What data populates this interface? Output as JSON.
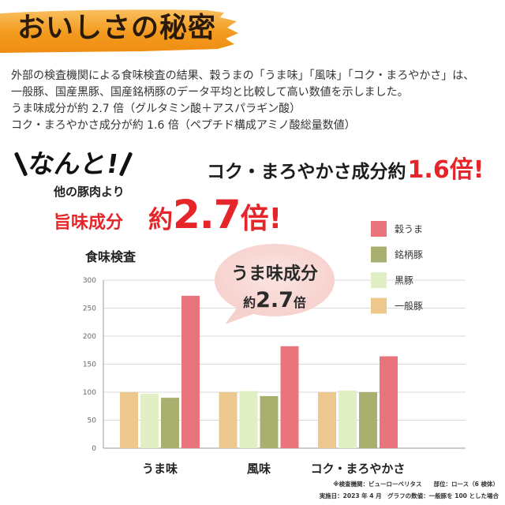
{
  "header": {
    "title": "おいしさの秘密"
  },
  "intro": {
    "lines": [
      "外部の検査機関による食味検査の結果、穀うまの「うま味」「風味」「コク・まろやかさ」は、",
      "一般豚、国産黒豚、国産銘柄豚のデータ平均と比較して高い数値を示しました。",
      "うま味成分が約 2.7 倍（グルタミン酸＋アスパラギン酸）",
      "コク・まろやかさ成分が約 1.6 倍（ペプチド構成アミノ酸総量数値）"
    ]
  },
  "callout": {
    "exclaim": "なんと!",
    "compare": "他の豚肉より",
    "umami_label": "旨味成分",
    "umami_prefix": "約",
    "umami_value": "2.7",
    "umami_suffix": "倍!",
    "koku_label": "コク・まろやかさ成分約",
    "koku_value": "1.6倍!"
  },
  "bubble": {
    "line1": "うま味成分",
    "prefix": "約",
    "value": "2.7",
    "suffix": "倍"
  },
  "footnote": {
    "line1": "※検査機関：ビューローベリタス　　部位：ロース（6 検体）",
    "line2": "実施日：2023 年 4 月　グラフの数値：一般豚を 100 とした場合"
  },
  "colors": {
    "accent_red": "#e5252a",
    "brush_orange": "#f39a1e",
    "bubble_pink": "#f8d6d2"
  },
  "chart_data": {
    "type": "bar",
    "title": "食味検査",
    "xlabel": "",
    "ylabel": "",
    "categories": [
      "うま味",
      "風味",
      "コク・まろやかさ"
    ],
    "series": [
      {
        "name": "一般豚",
        "values": [
          100,
          100,
          100
        ],
        "color": "#ecc88e"
      },
      {
        "name": "黒豚",
        "values": [
          97,
          102,
          103
        ],
        "color": "#e2eec4"
      },
      {
        "name": "銘柄豚",
        "values": [
          90,
          93,
          100
        ],
        "color": "#a9af6e"
      },
      {
        "name": "穀うま",
        "values": [
          272,
          182,
          164
        ],
        "color": "#e9747b"
      }
    ],
    "ylim": [
      0,
      300
    ],
    "yticks": [
      0,
      50,
      100,
      150,
      200,
      250,
      300
    ],
    "grid": true,
    "legend": "right"
  }
}
